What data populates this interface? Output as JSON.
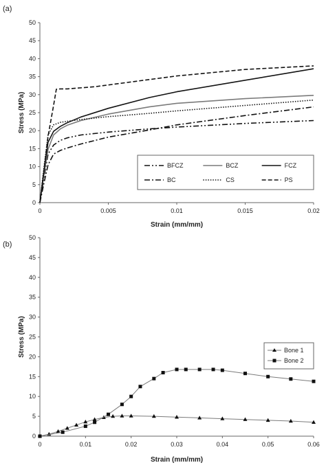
{
  "colors": {
    "black": "#111111",
    "gray": "#7a7a7a",
    "axis": "#666666",
    "text": "#222222"
  },
  "chart_data": [
    {
      "panel_label": "(a)",
      "type": "line",
      "xlabel": "Strain (mm/mm)",
      "ylabel": "Stress (MPa)",
      "xlim": [
        0,
        0.02
      ],
      "ylim": [
        0,
        50
      ],
      "xticks": [
        0,
        0.005,
        0.01,
        0.015,
        0.02
      ],
      "xtick_labels": [
        "0",
        "0.005",
        "0.01",
        "0.015",
        "0.02"
      ],
      "yticks": [
        0,
        5,
        10,
        15,
        20,
        25,
        30,
        35,
        40,
        45,
        50
      ],
      "ytick_labels": [
        "0",
        "5",
        "10",
        "15",
        "20",
        "25",
        "30",
        "35",
        "40",
        "45",
        "50"
      ],
      "grid": false,
      "legend_position": "lower-right",
      "series": [
        {
          "name": "BFCZ",
          "line_style": "dash-dot-dot",
          "color": "black",
          "x": [
            0,
            0.0003,
            0.0006,
            0.001,
            0.0015,
            0.002,
            0.003,
            0.005,
            0.008,
            0.01,
            0.015,
            0.02
          ],
          "y": [
            0,
            7,
            13.5,
            16,
            17.3,
            18,
            18.8,
            19.6,
            20.5,
            21,
            22,
            22.8
          ]
        },
        {
          "name": "BCZ",
          "line_style": "solid",
          "color": "gray",
          "x": [
            0,
            0.0003,
            0.0006,
            0.001,
            0.0015,
            0.002,
            0.003,
            0.005,
            0.008,
            0.01,
            0.015,
            0.02
          ],
          "y": [
            0,
            8,
            14.8,
            18.8,
            20.5,
            21.5,
            22.8,
            24.6,
            26.6,
            27.6,
            28.9,
            29.8
          ]
        },
        {
          "name": "FCZ",
          "line_style": "solid",
          "color": "black",
          "x": [
            0,
            0.0003,
            0.0006,
            0.001,
            0.0015,
            0.002,
            0.003,
            0.005,
            0.008,
            0.01,
            0.015,
            0.02
          ],
          "y": [
            0,
            9,
            16.8,
            19.8,
            21.2,
            22.2,
            23.8,
            26.2,
            29.2,
            30.8,
            34,
            37.2
          ]
        },
        {
          "name": "BC",
          "line_style": "dash-dot",
          "color": "black",
          "x": [
            0,
            0.0003,
            0.0006,
            0.001,
            0.0015,
            0.002,
            0.003,
            0.005,
            0.008,
            0.01,
            0.015,
            0.02
          ],
          "y": [
            0,
            5.5,
            10.5,
            13.5,
            14.5,
            15.2,
            16.3,
            18.2,
            20.2,
            21.6,
            24.2,
            26.6
          ]
        },
        {
          "name": "CS",
          "line_style": "dotted",
          "color": "black",
          "x": [
            0,
            0.0003,
            0.0006,
            0.001,
            0.0015,
            0.002,
            0.003,
            0.005,
            0.008,
            0.01,
            0.015,
            0.02
          ],
          "y": [
            0,
            10,
            18.8,
            21.6,
            22.3,
            22.6,
            23.1,
            23.9,
            24.8,
            25.5,
            27,
            28.5
          ]
        },
        {
          "name": "PS",
          "line_style": "dashed",
          "color": "black",
          "x": [
            0,
            0.0003,
            0.0006,
            0.001,
            0.0012,
            0.0015,
            0.002,
            0.004,
            0.008,
            0.01,
            0.015,
            0.02
          ],
          "y": [
            0,
            9,
            18.5,
            27,
            31.5,
            31.6,
            31.6,
            32.2,
            34.2,
            35.2,
            37,
            38
          ]
        }
      ]
    },
    {
      "panel_label": "(b)",
      "type": "line",
      "xlabel": "Strain (mm/mm)",
      "ylabel": "Stress (MPa)",
      "xlim": [
        0,
        0.06
      ],
      "ylim": [
        0,
        50
      ],
      "xticks": [
        0,
        0.01,
        0.02,
        0.03,
        0.04,
        0.05,
        0.06
      ],
      "xtick_labels": [
        "0",
        "0.01",
        "0.02",
        "0.03",
        "0.04",
        "0.05",
        "0.06"
      ],
      "yticks": [
        0,
        5,
        10,
        15,
        20,
        25,
        30,
        35,
        40,
        45,
        50
      ],
      "ytick_labels": [
        "0",
        "5",
        "10",
        "15",
        "20",
        "25",
        "30",
        "35",
        "40",
        "45",
        "50"
      ],
      "grid": false,
      "legend_position": "right",
      "series": [
        {
          "name": "Bone 1",
          "marker": "triangle",
          "color": "black",
          "x": [
            0,
            0.002,
            0.004,
            0.006,
            0.008,
            0.01,
            0.012,
            0.014,
            0.016,
            0.018,
            0.02,
            0.025,
            0.03,
            0.035,
            0.04,
            0.045,
            0.05,
            0.055,
            0.06
          ],
          "y": [
            0,
            0.5,
            1.2,
            2,
            2.8,
            3.6,
            4.2,
            4.7,
            5,
            5.1,
            5.1,
            5,
            4.8,
            4.6,
            4.4,
            4.2,
            4,
            3.8,
            3.5
          ]
        },
        {
          "name": "Bone 2",
          "marker": "square",
          "color": "black",
          "x": [
            0,
            0.005,
            0.01,
            0.012,
            0.015,
            0.018,
            0.02,
            0.022,
            0.025,
            0.027,
            0.03,
            0.032,
            0.035,
            0.038,
            0.04,
            0.045,
            0.05,
            0.055,
            0.06
          ],
          "y": [
            0,
            1,
            2.5,
            3.5,
            5.5,
            8,
            10,
            12.5,
            14.5,
            16,
            16.8,
            16.8,
            16.8,
            16.8,
            16.6,
            15.8,
            15,
            14.4,
            13.8
          ]
        }
      ]
    }
  ]
}
